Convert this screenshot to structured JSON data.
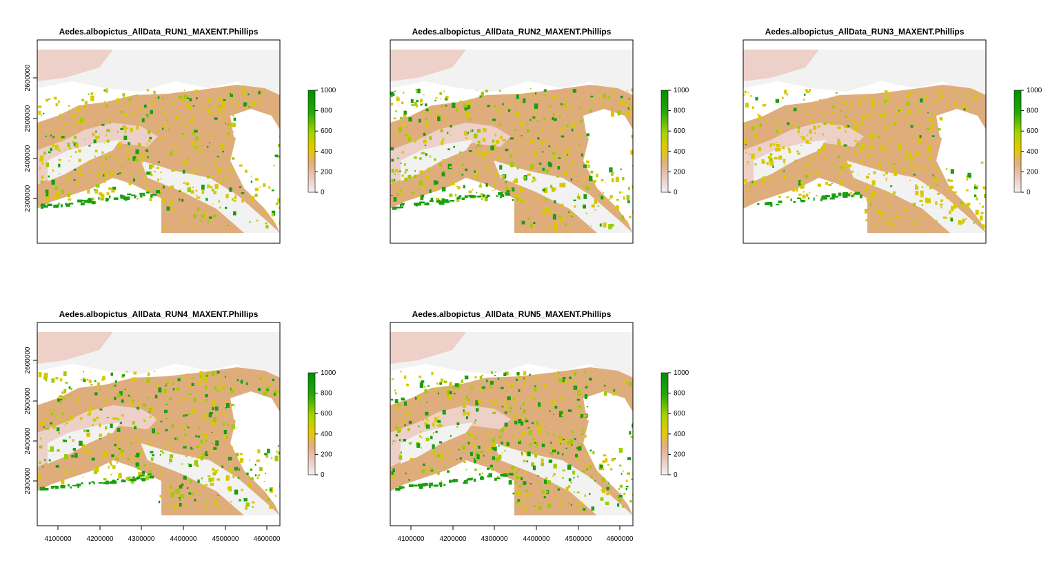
{
  "figure": {
    "panels": [
      {
        "title": "Aedes.albopictus_AllData_RUN1_MAXENT.Phillips",
        "greenLevel": 0.3,
        "show_x_axis": false,
        "show_y_axis": true
      },
      {
        "title": "Aedes.albopictus_AllData_RUN2_MAXENT.Phillips",
        "greenLevel": 0.5,
        "show_x_axis": false,
        "show_y_axis": false
      },
      {
        "title": "Aedes.albopictus_AllData_RUN3_MAXENT.Phillips",
        "greenLevel": 0.15,
        "show_x_axis": false,
        "show_y_axis": false
      },
      {
        "title": "Aedes.albopictus_AllData_RUN4_MAXENT.Phillips",
        "greenLevel": 0.55,
        "show_x_axis": true,
        "show_y_axis": true
      },
      {
        "title": "Aedes.albopictus_AllData_RUN5_MAXENT.Phillips",
        "greenLevel": 0.62,
        "show_x_axis": true,
        "show_y_axis": false
      }
    ],
    "x_ticks": [
      {
        "value": 4100000,
        "label": "4100000"
      },
      {
        "value": 4200000,
        "label": "4200000"
      },
      {
        "value": 4300000,
        "label": "4300000"
      },
      {
        "value": 4400000,
        "label": "4400000"
      },
      {
        "value": 4500000,
        "label": "4500000"
      },
      {
        "value": 4600000,
        "label": "4600000"
      }
    ],
    "y_ticks": [
      {
        "value": 2300000,
        "label": "2300000"
      },
      {
        "value": 2400000,
        "label": "2400000"
      },
      {
        "value": 2500000,
        "label": "2500000"
      },
      {
        "value": 2600000,
        "label": "2600000"
      }
    ],
    "x_range": [
      4050000,
      4630000
    ],
    "y_range": [
      2215000,
      2695000
    ],
    "legend": {
      "ticks": [
        {
          "value": 0,
          "label": "0"
        },
        {
          "value": 200,
          "label": "200"
        },
        {
          "value": 400,
          "label": "400"
        },
        {
          "value": 600,
          "label": "600"
        },
        {
          "value": 800,
          "label": "800"
        },
        {
          "value": 1000,
          "label": "1000"
        }
      ],
      "range": [
        0,
        1000
      ],
      "colors": [
        "#f2f2f2",
        "#ecc9c2",
        "#e0b080",
        "#e6c800",
        "#a8d400",
        "#28a80a",
        "#008f00"
      ]
    },
    "palette": {
      "land_low": "#f2f2f2",
      "land_pink": "#edd0c8",
      "land_tan": "#dfad7c",
      "land_yellow": "#d8c800",
      "land_lightgreen": "#9ccd00",
      "land_green": "#199f10"
    }
  }
}
